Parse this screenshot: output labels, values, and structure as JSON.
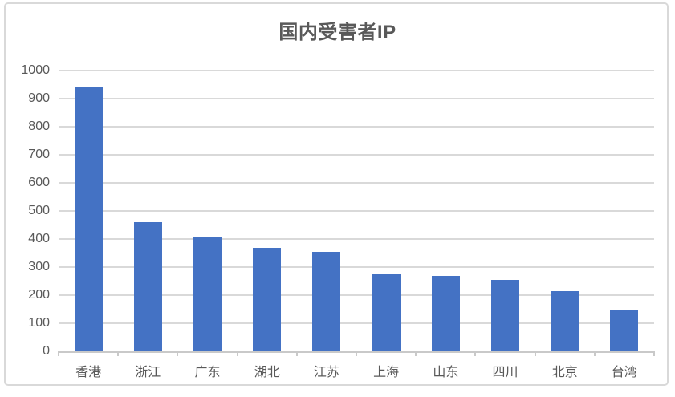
{
  "chart_data": {
    "type": "bar",
    "title": "国内受害者IP",
    "categories": [
      "香港",
      "浙江",
      "广东",
      "湖北",
      "江苏",
      "上海",
      "山东",
      "四川",
      "北京",
      "台湾"
    ],
    "values": [
      940,
      460,
      405,
      370,
      355,
      273,
      270,
      253,
      215,
      150
    ],
    "xlabel": "",
    "ylabel": "",
    "ylim": [
      0,
      1000
    ],
    "ytick_step": 100,
    "grid": true,
    "legend_position": "none",
    "colors": {
      "bar": "#4472C4",
      "gridline": "#D9D9D9",
      "axis_line": "#C9C9C9",
      "tick_label": "#595959",
      "title": "#595959",
      "frame_border": "#D9D9D9",
      "background": "#FFFFFF"
    }
  }
}
